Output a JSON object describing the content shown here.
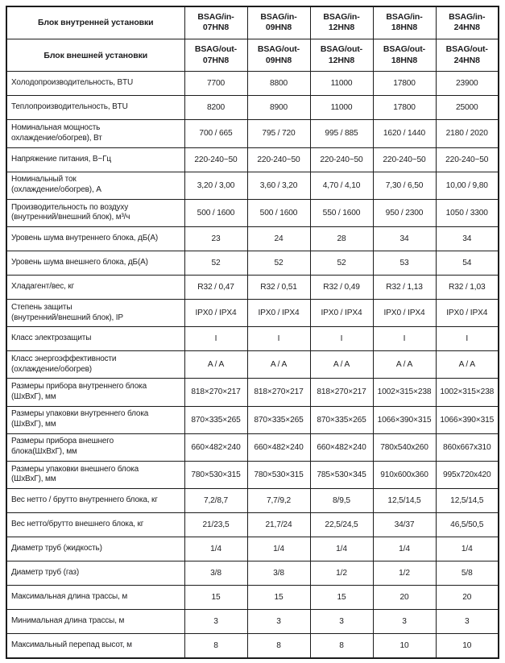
{
  "table": {
    "colors": {
      "border": "#1c1c1c",
      "text": "#1d1d1f",
      "background": "#ffffff"
    },
    "header_rows": [
      {
        "label": "Блок внутренней установки",
        "models": [
          "BSAG/in-\n07HN8",
          "BSAG/in-\n09HN8",
          "BSAG/in-\n12HN8",
          "BSAG/in-\n18HN8",
          "BSAG/in-\n24HN8"
        ]
      },
      {
        "label": "Блок внешней установки",
        "models": [
          "BSAG/out-\n07HN8",
          "BSAG/out-\n09HN8",
          "BSAG/out-\n12HN8",
          "BSAG/out-\n18HN8",
          "BSAG/out-\n24HN8"
        ]
      }
    ],
    "rows": [
      {
        "label": "Холодопроизводительность, BTU",
        "values": [
          "7700",
          "8800",
          "11000",
          "17800",
          "23900"
        ]
      },
      {
        "label": "Теплопроизводительность, BTU",
        "values": [
          "8200",
          "8900",
          "11000",
          "17800",
          "25000"
        ]
      },
      {
        "label": "Номинальная мощность\nохлаждение/обогрев), Вт",
        "values": [
          "700 / 665",
          "795 / 720",
          "995 / 885",
          "1620 / 1440",
          "2180 / 2020"
        ]
      },
      {
        "label": "Напряжение питания, В~Гц",
        "values": [
          "220-240~50",
          "220-240~50",
          "220-240~50",
          "220-240~50",
          "220-240~50"
        ]
      },
      {
        "label": "Номинальный ток\n(охлаждение/обогрев), А",
        "values": [
          "3,20 / 3,00",
          "3,60 / 3,20",
          "4,70 / 4,10",
          "7,30 / 6,50",
          "10,00 / 9,80"
        ]
      },
      {
        "label": "Производительность по воздуху\n(внутренний/внешний блок), м³/ч",
        "values": [
          "500 / 1600",
          "500 / 1600",
          "550 / 1600",
          "950 / 2300",
          "1050 / 3300"
        ]
      },
      {
        "label": "Уровень шума внутреннего блока, дБ(А)",
        "values": [
          "23",
          "24",
          "28",
          "34",
          "34"
        ]
      },
      {
        "label": "Уровень шума внешнего блока, дБ(А)",
        "values": [
          "52",
          "52",
          "52",
          "53",
          "54"
        ]
      },
      {
        "label": "Хладагент/вес, кг",
        "values": [
          "R32 / 0,47",
          "R32 / 0,51",
          "R32 / 0,49",
          "R32 / 1,13",
          "R32 / 1,03"
        ]
      },
      {
        "label": "Степень защиты\n(внутренний/внешний блок), IP",
        "values": [
          "IPX0 / IPX4",
          "IPX0 / IPX4",
          "IPX0 / IPX4",
          "IPX0 / IPX4",
          "IPX0 / IPX4"
        ]
      },
      {
        "label": "Класс электрозащиты",
        "values": [
          "I",
          "I",
          "I",
          "I",
          "I"
        ]
      },
      {
        "label": "Класс энергоэффективности\n(охлаждение/обогрев)",
        "values": [
          "A / A",
          "A / A",
          "A / A",
          "A / A",
          "A / A"
        ]
      },
      {
        "label": "Размеры прибора внутреннего блока\n(ШхВхГ), мм",
        "values": [
          "818×270×217",
          "818×270×217",
          "818×270×217",
          "1002×315×238",
          "1002×315×238"
        ]
      },
      {
        "label": "Размеры упаковки внутреннего блока\n(ШхВхГ), мм",
        "values": [
          "870×335×265",
          "870×335×265",
          "870×335×265",
          "1066×390×315",
          "1066×390×315"
        ]
      },
      {
        "label": "Размеры прибора внешнего\nблока(ШхВхГ), мм",
        "values": [
          "660×482×240",
          "660×482×240",
          "660×482×240",
          "780x540x260",
          "860x667x310"
        ]
      },
      {
        "label": "Размеры упаковки внешнего блока\n(ШхВхГ), мм",
        "values": [
          "780×530×315",
          "780×530×315",
          "785×530×345",
          "910x600x360",
          "995x720x420"
        ]
      },
      {
        "label": "Вес нетто / брутто внутреннего блока, кг",
        "values": [
          "7,2/8,7",
          "7,7/9,2",
          "8/9,5",
          "12,5/14,5",
          "12,5/14,5"
        ]
      },
      {
        "label": "Вес нетто/брутто внешнего блока, кг",
        "values": [
          "21/23,5",
          "21,7/24",
          "22,5/24,5",
          "34/37",
          "46,5/50,5"
        ]
      },
      {
        "label": "Диаметр труб (жидкость)",
        "values": [
          "1/4",
          "1/4",
          "1/4",
          "1/4",
          "1/4"
        ]
      },
      {
        "label": "Диаметр труб (газ)",
        "values": [
          "3/8",
          "3/8",
          "1/2",
          "1/2",
          "5/8"
        ]
      },
      {
        "label": "Максимальная длина трассы, м",
        "values": [
          "15",
          "15",
          "15",
          "20",
          "20"
        ]
      },
      {
        "label": "Минимальная длина трассы, м",
        "values": [
          "3",
          "3",
          "3",
          "3",
          "3"
        ]
      },
      {
        "label": "Максимальный перепад высот, м",
        "values": [
          "8",
          "8",
          "8",
          "10",
          "10"
        ]
      }
    ]
  }
}
